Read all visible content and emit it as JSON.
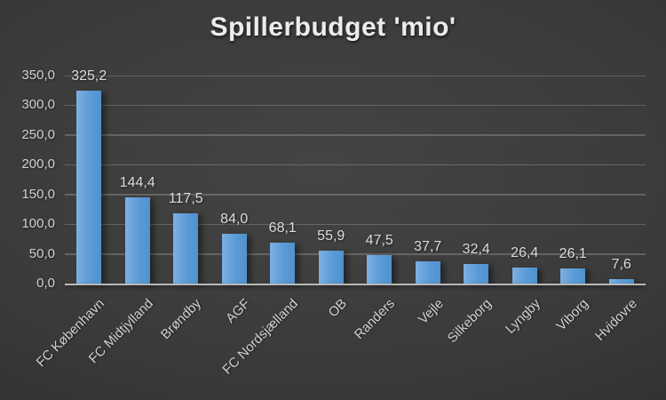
{
  "chart_data": {
    "type": "bar",
    "title": "Spillerbudget 'mio'",
    "categories": [
      "FC København",
      "FC Midtjylland",
      "Brøndby",
      "AGF",
      "FC Nordsjælland",
      "OB",
      "Randers",
      "Vejle",
      "Silkeborg",
      "Lyngby",
      "Viborg",
      "Hvidovre"
    ],
    "values": [
      325.2,
      144.4,
      117.5,
      84.0,
      68.1,
      55.9,
      47.5,
      37.7,
      32.4,
      26.4,
      26.1,
      7.6
    ],
    "value_labels": [
      "325,2",
      "144,4",
      "117,5",
      "84,0",
      "68,1",
      "55,9",
      "47,5",
      "37,7",
      "32,4",
      "26,4",
      "26,1",
      "7,6"
    ],
    "xlabel": "",
    "ylabel": "",
    "ylim": [
      0,
      350
    ],
    "ytick_step": 50,
    "ytick_labels": [
      "0,0",
      "50,0",
      "100,0",
      "150,0",
      "200,0",
      "250,0",
      "300,0",
      "350,0"
    ],
    "grid": true,
    "legend_position": "none",
    "colors": {
      "bar": "#5b9bd5",
      "bar_highlight": "#7cb0e2",
      "background_center": "#424242",
      "background_edge": "#242424",
      "gridline": "rgba(255,255,255,0.20)",
      "axis_line": "#b8b8b8",
      "text": "#d0d0d0",
      "title_text": "#ececec"
    }
  }
}
